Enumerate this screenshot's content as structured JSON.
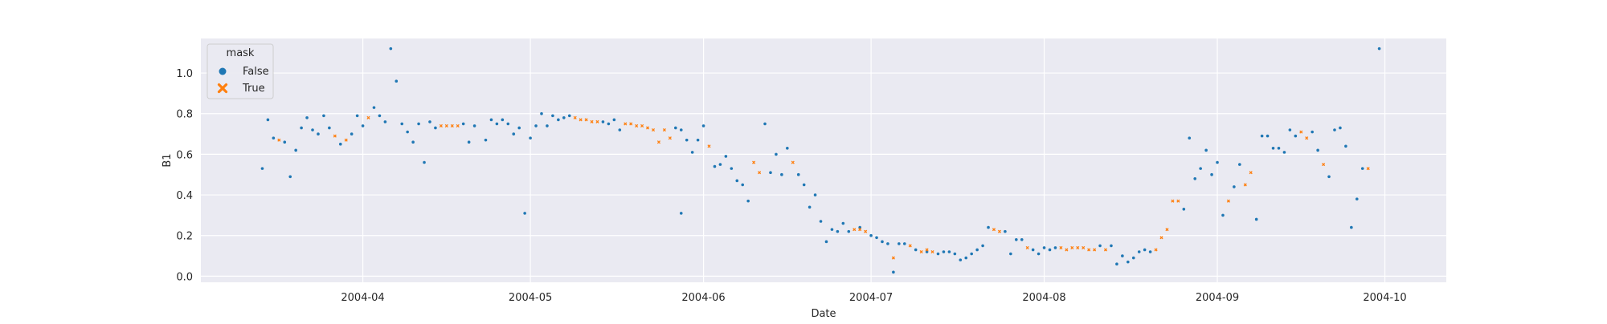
{
  "chart_data": {
    "type": "scatter",
    "title": "",
    "xlabel": "Date",
    "ylabel": "B1",
    "x_ticks": [
      "2004-04",
      "2004-05",
      "2004-06",
      "2004-07",
      "2004-08",
      "2004-09",
      "2004-10"
    ],
    "y_ticks": [
      "0.0",
      "0.2",
      "0.4",
      "0.6",
      "0.8",
      "1.0"
    ],
    "xlim": [
      "2004-03-03",
      "2004-10-12"
    ],
    "ylim": [
      -0.03,
      1.17
    ],
    "grid": true,
    "legend": {
      "title": "mask",
      "placement": "top-left",
      "entries": [
        {
          "label": "False",
          "marker": "circle",
          "color": "#1f77b4"
        },
        {
          "label": "True",
          "marker": "x",
          "color": "#ff7f0e"
        }
      ]
    },
    "colors": {
      "False": "#1f77b4",
      "True": "#ff7f0e",
      "background": "#eaeaf2",
      "grid": "#ffffff"
    },
    "series": [
      {
        "name": "False",
        "points": [
          {
            "x": "2004-03-14",
            "y": 0.53
          },
          {
            "x": "2004-03-15",
            "y": 0.77
          },
          {
            "x": "2004-03-16",
            "y": 0.68
          },
          {
            "x": "2004-03-18",
            "y": 0.66
          },
          {
            "x": "2004-03-19",
            "y": 0.49
          },
          {
            "x": "2004-03-20",
            "y": 0.62
          },
          {
            "x": "2004-03-21",
            "y": 0.73
          },
          {
            "x": "2004-03-22",
            "y": 0.78
          },
          {
            "x": "2004-03-23",
            "y": 0.72
          },
          {
            "x": "2004-03-24",
            "y": 0.7
          },
          {
            "x": "2004-03-25",
            "y": 0.79
          },
          {
            "x": "2004-03-26",
            "y": 0.73
          },
          {
            "x": "2004-03-28",
            "y": 0.65
          },
          {
            "x": "2004-03-30",
            "y": 0.7
          },
          {
            "x": "2004-03-31",
            "y": 0.79
          },
          {
            "x": "2004-04-01",
            "y": 0.74
          },
          {
            "x": "2004-04-03",
            "y": 0.83
          },
          {
            "x": "2004-04-04",
            "y": 0.79
          },
          {
            "x": "2004-04-05",
            "y": 0.76
          },
          {
            "x": "2004-04-06",
            "y": 1.12
          },
          {
            "x": "2004-04-07",
            "y": 0.96
          },
          {
            "x": "2004-04-08",
            "y": 0.75
          },
          {
            "x": "2004-04-09",
            "y": 0.71
          },
          {
            "x": "2004-04-10",
            "y": 0.66
          },
          {
            "x": "2004-04-11",
            "y": 0.75
          },
          {
            "x": "2004-04-12",
            "y": 0.56
          },
          {
            "x": "2004-04-13",
            "y": 0.76
          },
          {
            "x": "2004-04-14",
            "y": 0.73
          },
          {
            "x": "2004-04-19",
            "y": 0.75
          },
          {
            "x": "2004-04-20",
            "y": 0.66
          },
          {
            "x": "2004-04-21",
            "y": 0.74
          },
          {
            "x": "2004-04-23",
            "y": 0.67
          },
          {
            "x": "2004-04-24",
            "y": 0.77
          },
          {
            "x": "2004-04-25",
            "y": 0.75
          },
          {
            "x": "2004-04-26",
            "y": 0.77
          },
          {
            "x": "2004-04-27",
            "y": 0.75
          },
          {
            "x": "2004-04-28",
            "y": 0.7
          },
          {
            "x": "2004-04-29",
            "y": 0.73
          },
          {
            "x": "2004-04-30",
            "y": 0.31
          },
          {
            "x": "2004-05-01",
            "y": 0.68
          },
          {
            "x": "2004-05-02",
            "y": 0.74
          },
          {
            "x": "2004-05-03",
            "y": 0.8
          },
          {
            "x": "2004-05-04",
            "y": 0.74
          },
          {
            "x": "2004-05-05",
            "y": 0.79
          },
          {
            "x": "2004-05-06",
            "y": 0.77
          },
          {
            "x": "2004-05-07",
            "y": 0.78
          },
          {
            "x": "2004-05-08",
            "y": 0.79
          },
          {
            "x": "2004-05-14",
            "y": 0.76
          },
          {
            "x": "2004-05-15",
            "y": 0.75
          },
          {
            "x": "2004-05-16",
            "y": 0.77
          },
          {
            "x": "2004-05-17",
            "y": 0.72
          },
          {
            "x": "2004-05-27",
            "y": 0.73
          },
          {
            "x": "2004-05-28",
            "y": 0.72
          },
          {
            "x": "2004-05-28",
            "y": 0.31
          },
          {
            "x": "2004-05-29",
            "y": 0.67
          },
          {
            "x": "2004-05-30",
            "y": 0.61
          },
          {
            "x": "2004-05-31",
            "y": 0.67
          },
          {
            "x": "2004-06-01",
            "y": 0.74
          },
          {
            "x": "2004-06-03",
            "y": 0.54
          },
          {
            "x": "2004-06-04",
            "y": 0.55
          },
          {
            "x": "2004-06-05",
            "y": 0.59
          },
          {
            "x": "2004-06-06",
            "y": 0.53
          },
          {
            "x": "2004-06-07",
            "y": 0.47
          },
          {
            "x": "2004-06-08",
            "y": 0.45
          },
          {
            "x": "2004-06-09",
            "y": 0.37
          },
          {
            "x": "2004-06-12",
            "y": 0.75
          },
          {
            "x": "2004-06-13",
            "y": 0.51
          },
          {
            "x": "2004-06-14",
            "y": 0.6
          },
          {
            "x": "2004-06-15",
            "y": 0.5
          },
          {
            "x": "2004-06-16",
            "y": 0.63
          },
          {
            "x": "2004-06-18",
            "y": 0.5
          },
          {
            "x": "2004-06-19",
            "y": 0.45
          },
          {
            "x": "2004-06-20",
            "y": 0.34
          },
          {
            "x": "2004-06-21",
            "y": 0.4
          },
          {
            "x": "2004-06-22",
            "y": 0.27
          },
          {
            "x": "2004-06-23",
            "y": 0.17
          },
          {
            "x": "2004-06-24",
            "y": 0.23
          },
          {
            "x": "2004-06-25",
            "y": 0.22
          },
          {
            "x": "2004-06-26",
            "y": 0.26
          },
          {
            "x": "2004-06-27",
            "y": 0.22
          },
          {
            "x": "2004-06-29",
            "y": 0.24
          },
          {
            "x": "2004-07-01",
            "y": 0.2
          },
          {
            "x": "2004-07-02",
            "y": 0.19
          },
          {
            "x": "2004-07-03",
            "y": 0.17
          },
          {
            "x": "2004-07-04",
            "y": 0.16
          },
          {
            "x": "2004-07-05",
            "y": 0.02
          },
          {
            "x": "2004-07-06",
            "y": 0.16
          },
          {
            "x": "2004-07-07",
            "y": 0.16
          },
          {
            "x": "2004-07-09",
            "y": 0.13
          },
          {
            "x": "2004-07-11",
            "y": 0.12
          },
          {
            "x": "2004-07-13",
            "y": 0.11
          },
          {
            "x": "2004-07-14",
            "y": 0.12
          },
          {
            "x": "2004-07-15",
            "y": 0.12
          },
          {
            "x": "2004-07-16",
            "y": 0.11
          },
          {
            "x": "2004-07-17",
            "y": 0.08
          },
          {
            "x": "2004-07-18",
            "y": 0.09
          },
          {
            "x": "2004-07-19",
            "y": 0.11
          },
          {
            "x": "2004-07-20",
            "y": 0.13
          },
          {
            "x": "2004-07-21",
            "y": 0.15
          },
          {
            "x": "2004-07-22",
            "y": 0.24
          },
          {
            "x": "2004-07-25",
            "y": 0.22
          },
          {
            "x": "2004-07-26",
            "y": 0.11
          },
          {
            "x": "2004-07-27",
            "y": 0.18
          },
          {
            "x": "2004-07-28",
            "y": 0.18
          },
          {
            "x": "2004-07-30",
            "y": 0.13
          },
          {
            "x": "2004-07-31",
            "y": 0.11
          },
          {
            "x": "2004-08-01",
            "y": 0.14
          },
          {
            "x": "2004-08-02",
            "y": 0.13
          },
          {
            "x": "2004-08-03",
            "y": 0.14
          },
          {
            "x": "2004-08-11",
            "y": 0.15
          },
          {
            "x": "2004-08-13",
            "y": 0.15
          },
          {
            "x": "2004-08-14",
            "y": 0.06
          },
          {
            "x": "2004-08-15",
            "y": 0.1
          },
          {
            "x": "2004-08-16",
            "y": 0.07
          },
          {
            "x": "2004-08-17",
            "y": 0.09
          },
          {
            "x": "2004-08-18",
            "y": 0.12
          },
          {
            "x": "2004-08-19",
            "y": 0.13
          },
          {
            "x": "2004-08-20",
            "y": 0.12
          },
          {
            "x": "2004-08-26",
            "y": 0.33
          },
          {
            "x": "2004-08-27",
            "y": 0.68
          },
          {
            "x": "2004-08-28",
            "y": 0.48
          },
          {
            "x": "2004-08-29",
            "y": 0.53
          },
          {
            "x": "2004-08-30",
            "y": 0.62
          },
          {
            "x": "2004-08-31",
            "y": 0.5
          },
          {
            "x": "2004-09-01",
            "y": 0.56
          },
          {
            "x": "2004-09-02",
            "y": 0.3
          },
          {
            "x": "2004-09-04",
            "y": 0.44
          },
          {
            "x": "2004-09-05",
            "y": 0.55
          },
          {
            "x": "2004-09-08",
            "y": 0.28
          },
          {
            "x": "2004-09-09",
            "y": 0.69
          },
          {
            "x": "2004-09-10",
            "y": 0.69
          },
          {
            "x": "2004-09-11",
            "y": 0.63
          },
          {
            "x": "2004-09-12",
            "y": 0.63
          },
          {
            "x": "2004-09-13",
            "y": 0.61
          },
          {
            "x": "2004-09-14",
            "y": 0.72
          },
          {
            "x": "2004-09-15",
            "y": 0.69
          },
          {
            "x": "2004-09-18",
            "y": 0.71
          },
          {
            "x": "2004-09-19",
            "y": 0.62
          },
          {
            "x": "2004-09-21",
            "y": 0.49
          },
          {
            "x": "2004-09-22",
            "y": 0.72
          },
          {
            "x": "2004-09-23",
            "y": 0.73
          },
          {
            "x": "2004-09-24",
            "y": 0.64
          },
          {
            "x": "2004-09-25",
            "y": 0.24
          },
          {
            "x": "2004-09-26",
            "y": 0.38
          },
          {
            "x": "2004-09-27",
            "y": 0.53
          },
          {
            "x": "2004-09-30",
            "y": 1.12
          }
        ]
      },
      {
        "name": "True",
        "points": [
          {
            "x": "2004-03-17",
            "y": 0.67
          },
          {
            "x": "2004-03-27",
            "y": 0.69
          },
          {
            "x": "2004-03-29",
            "y": 0.67
          },
          {
            "x": "2004-04-02",
            "y": 0.78
          },
          {
            "x": "2004-04-15",
            "y": 0.74
          },
          {
            "x": "2004-04-16",
            "y": 0.74
          },
          {
            "x": "2004-04-17",
            "y": 0.74
          },
          {
            "x": "2004-04-18",
            "y": 0.74
          },
          {
            "x": "2004-05-09",
            "y": 0.78
          },
          {
            "x": "2004-05-10",
            "y": 0.77
          },
          {
            "x": "2004-05-11",
            "y": 0.77
          },
          {
            "x": "2004-05-12",
            "y": 0.76
          },
          {
            "x": "2004-05-13",
            "y": 0.76
          },
          {
            "x": "2004-05-18",
            "y": 0.75
          },
          {
            "x": "2004-05-19",
            "y": 0.75
          },
          {
            "x": "2004-05-20",
            "y": 0.74
          },
          {
            "x": "2004-05-21",
            "y": 0.74
          },
          {
            "x": "2004-05-22",
            "y": 0.73
          },
          {
            "x": "2004-05-23",
            "y": 0.72
          },
          {
            "x": "2004-05-24",
            "y": 0.66
          },
          {
            "x": "2004-05-25",
            "y": 0.72
          },
          {
            "x": "2004-05-26",
            "y": 0.68
          },
          {
            "x": "2004-06-02",
            "y": 0.64
          },
          {
            "x": "2004-06-10",
            "y": 0.56
          },
          {
            "x": "2004-06-11",
            "y": 0.51
          },
          {
            "x": "2004-06-17",
            "y": 0.56
          },
          {
            "x": "2004-06-28",
            "y": 0.23
          },
          {
            "x": "2004-06-29",
            "y": 0.23
          },
          {
            "x": "2004-06-30",
            "y": 0.22
          },
          {
            "x": "2004-07-05",
            "y": 0.09
          },
          {
            "x": "2004-07-08",
            "y": 0.15
          },
          {
            "x": "2004-07-10",
            "y": 0.12
          },
          {
            "x": "2004-07-11",
            "y": 0.13
          },
          {
            "x": "2004-07-12",
            "y": 0.12
          },
          {
            "x": "2004-07-23",
            "y": 0.23
          },
          {
            "x": "2004-07-24",
            "y": 0.22
          },
          {
            "x": "2004-07-29",
            "y": 0.14
          },
          {
            "x": "2004-08-04",
            "y": 0.14
          },
          {
            "x": "2004-08-05",
            "y": 0.13
          },
          {
            "x": "2004-08-06",
            "y": 0.14
          },
          {
            "x": "2004-08-07",
            "y": 0.14
          },
          {
            "x": "2004-08-08",
            "y": 0.14
          },
          {
            "x": "2004-08-09",
            "y": 0.13
          },
          {
            "x": "2004-08-10",
            "y": 0.13
          },
          {
            "x": "2004-08-12",
            "y": 0.13
          },
          {
            "x": "2004-08-21",
            "y": 0.13
          },
          {
            "x": "2004-08-22",
            "y": 0.19
          },
          {
            "x": "2004-08-23",
            "y": 0.23
          },
          {
            "x": "2004-08-24",
            "y": 0.37
          },
          {
            "x": "2004-08-25",
            "y": 0.37
          },
          {
            "x": "2004-09-03",
            "y": 0.37
          },
          {
            "x": "2004-09-06",
            "y": 0.45
          },
          {
            "x": "2004-09-07",
            "y": 0.51
          },
          {
            "x": "2004-09-16",
            "y": 0.71
          },
          {
            "x": "2004-09-17",
            "y": 0.68
          },
          {
            "x": "2004-09-20",
            "y": 0.55
          },
          {
            "x": "2004-09-28",
            "y": 0.53
          }
        ]
      }
    ]
  }
}
